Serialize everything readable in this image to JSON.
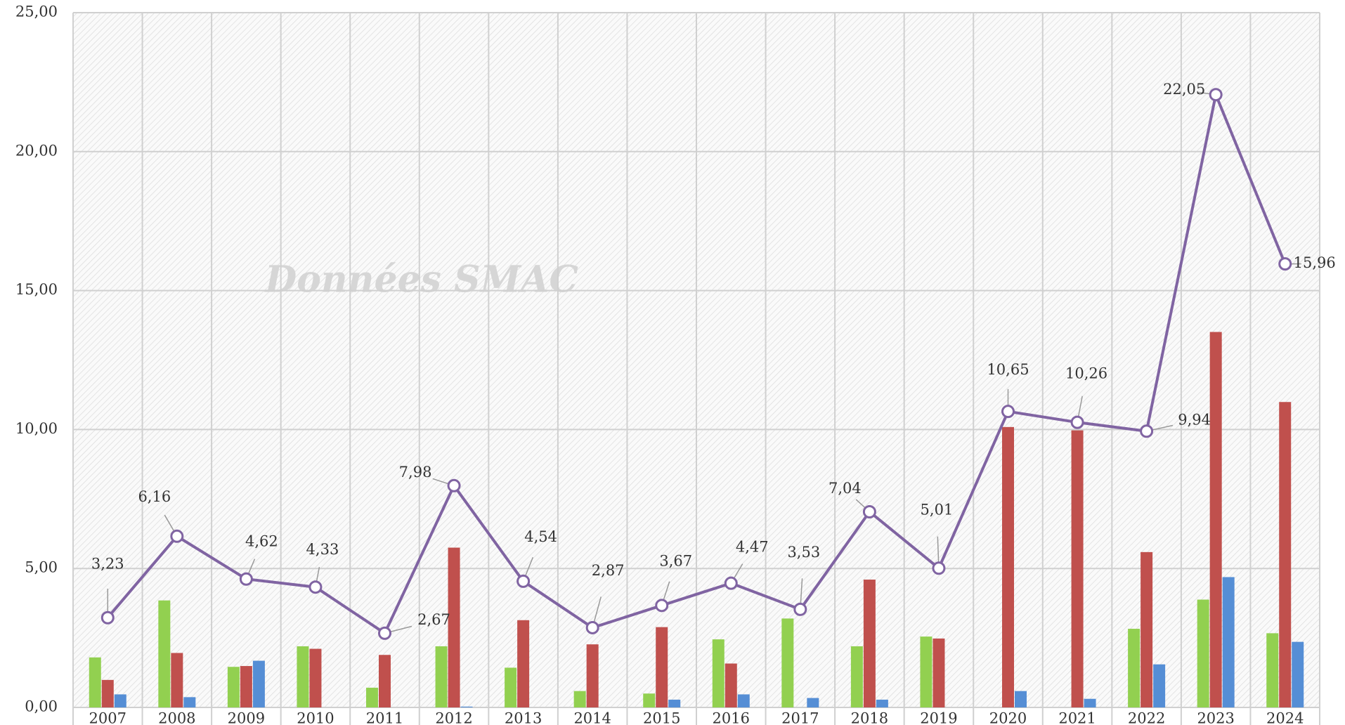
{
  "chart_data": {
    "type": "bar",
    "watermark": "Données SMAC",
    "categories": [
      "2007",
      "2008",
      "2009",
      "2010",
      "2011",
      "2012",
      "2013",
      "2014",
      "2015",
      "2016",
      "2017",
      "2018",
      "2019",
      "2020",
      "2021",
      "2022",
      "2023",
      "2024"
    ],
    "ylim": [
      0,
      25
    ],
    "yticks": [
      {
        "value": 0,
        "label": "0,00"
      },
      {
        "value": 5,
        "label": "5,00"
      },
      {
        "value": 10,
        "label": "10,00"
      },
      {
        "value": 15,
        "label": "15,00"
      },
      {
        "value": 20,
        "label": "20,00"
      },
      {
        "value": 25,
        "label": "25,00"
      }
    ],
    "grid": true,
    "series": [
      {
        "type": "bar",
        "color": "#92d050",
        "values": [
          1.8,
          3.85,
          1.46,
          2.2,
          0.71,
          2.2,
          1.43,
          0.59,
          0.5,
          2.45,
          3.2,
          2.2,
          2.55,
          0,
          0,
          2.83,
          3.88,
          2.67
        ]
      },
      {
        "type": "bar",
        "color": "#c0504d",
        "values": [
          0.99,
          1.96,
          1.49,
          2.11,
          1.89,
          5.75,
          3.14,
          2.27,
          2.89,
          1.58,
          0,
          4.6,
          2.48,
          10.09,
          9.97,
          5.59,
          13.51,
          10.99
        ]
      },
      {
        "type": "bar",
        "color": "#558ed5",
        "values": [
          0.47,
          0.37,
          1.68,
          0,
          0,
          0.03,
          0,
          0,
          0.28,
          0.47,
          0.34,
          0.28,
          0,
          0.59,
          0.31,
          1.55,
          4.69,
          2.36
        ]
      },
      {
        "type": "line",
        "color": "#8064a2",
        "values": [
          3.23,
          6.16,
          4.62,
          4.33,
          2.67,
          7.98,
          4.54,
          2.87,
          3.67,
          4.47,
          3.53,
          7.04,
          5.01,
          10.65,
          10.26,
          9.94,
          22.05,
          15.96
        ],
        "value_labels": [
          "3,23",
          "6,16",
          "4,62",
          "4,33",
          "2,67",
          "7,98",
          "4,54",
          "2,87",
          "3,67",
          "4,47",
          "3,53",
          "7,04",
          "5,01",
          "10,65",
          "10,26",
          "9,94",
          "22,05",
          "15,96"
        ]
      }
    ]
  }
}
